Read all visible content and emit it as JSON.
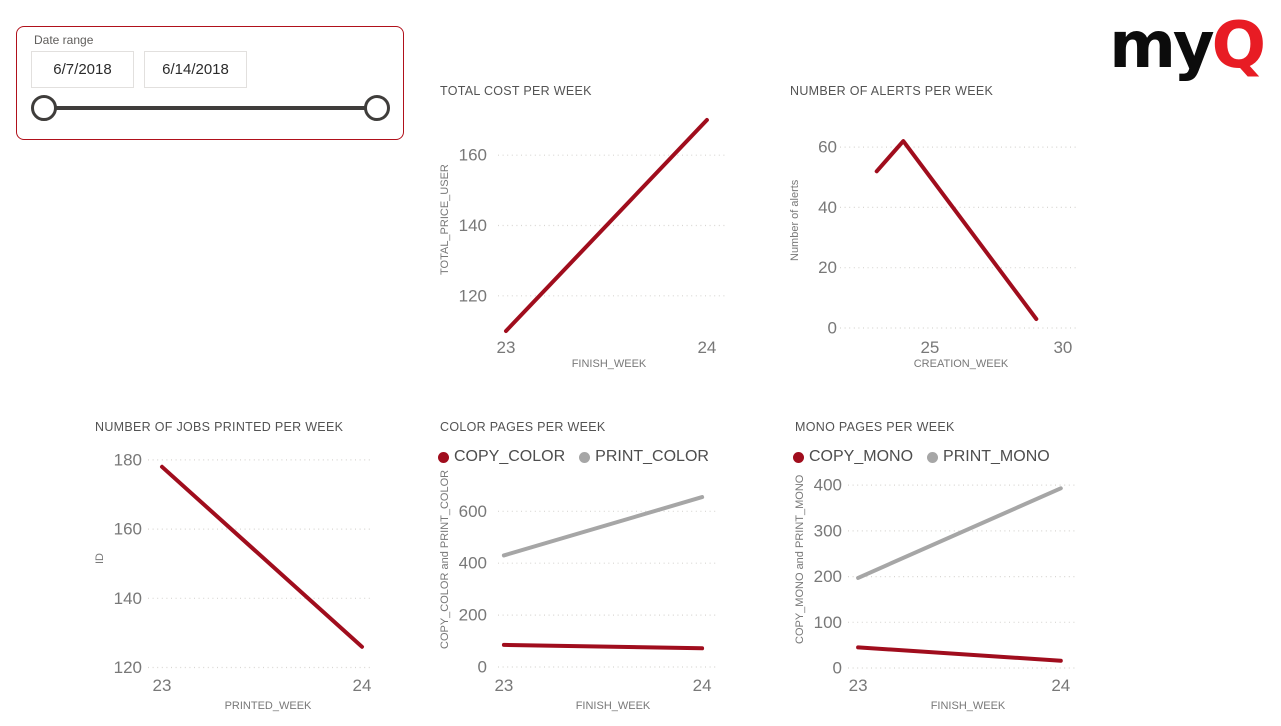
{
  "logo": {
    "text_black": "my",
    "text_red": "Q",
    "red": "#E81C24"
  },
  "slicer": {
    "label": "Date range",
    "start_date": "6/7/2018",
    "end_date": "6/14/2018"
  },
  "colors": {
    "red": "#A00D1D",
    "gray": "#A6A6A6",
    "grid": "#D8D6D2",
    "tick_text": "#787878",
    "slicer_border": "#B0111B"
  },
  "chart_data": [
    {
      "type": "line",
      "title": "TOTAL COST PER WEEK",
      "xlabel": "FINISH_WEEK",
      "ylabel": "TOTAL_PRICE_USER",
      "x_ticks": [
        23,
        24
      ],
      "y_ticks": [
        120,
        140,
        160
      ],
      "xlim": [
        22.96,
        24.09
      ],
      "ylim": [
        108,
        172
      ],
      "grid": true,
      "legend": null,
      "series": [
        {
          "name": "TOTAL_PRICE_USER",
          "color_key": "red",
          "points": [
            [
              23,
              110
            ],
            [
              24,
              170
            ]
          ]
        }
      ]
    },
    {
      "type": "line",
      "title": "NUMBER OF ALERTS PER WEEK",
      "xlabel": "CREATION_WEEK",
      "ylabel": "Number of alerts",
      "x_ticks": [
        25,
        30
      ],
      "y_ticks": [
        0,
        20,
        40,
        60
      ],
      "xlim": [
        21.62,
        30.53
      ],
      "ylim": [
        0,
        70
      ],
      "grid": true,
      "legend": null,
      "series": [
        {
          "name": "Number of alerts",
          "color_key": "red",
          "points": [
            [
              23,
              52
            ],
            [
              24,
              62
            ],
            [
              29,
              3
            ]
          ]
        }
      ]
    },
    {
      "type": "line",
      "title": "NUMBER OF JOBS PRINTED PER WEEK",
      "xlabel": "PRINTED_WEEK",
      "ylabel": "ID",
      "x_ticks": [
        23,
        24
      ],
      "y_ticks": [
        120,
        140,
        160,
        180
      ],
      "xlim": [
        22.93,
        24.04
      ],
      "ylim": [
        119,
        182
      ],
      "grid": true,
      "legend": null,
      "series": [
        {
          "name": "ID",
          "color_key": "red",
          "points": [
            [
              23,
              178
            ],
            [
              24,
              126
            ]
          ]
        }
      ]
    },
    {
      "type": "line",
      "title": "COLOR PAGES PER WEEK",
      "xlabel": "FINISH_WEEK",
      "ylabel": "COPY_COLOR and PRINT_COLOR",
      "x_ticks": [
        23,
        24
      ],
      "y_ticks": [
        0,
        200,
        400,
        600
      ],
      "xlim": [
        22.97,
        24.08
      ],
      "ylim": [
        0,
        690
      ],
      "grid": true,
      "legend": [
        {
          "label": "COPY_COLOR",
          "color_key": "red"
        },
        {
          "label": "PRINT_COLOR",
          "color_key": "gray"
        }
      ],
      "series": [
        {
          "name": "COPY_COLOR",
          "color_key": "red",
          "points": [
            [
              23,
              85
            ],
            [
              24,
              72
            ]
          ]
        },
        {
          "name": "PRINT_COLOR",
          "color_key": "gray",
          "points": [
            [
              23,
              430
            ],
            [
              24,
              655
            ]
          ]
        }
      ]
    },
    {
      "type": "line",
      "title": "MONO PAGES PER WEEK",
      "xlabel": "FINISH_WEEK",
      "ylabel": "COPY_MONO and PRINT_MONO",
      "x_ticks": [
        23,
        24
      ],
      "y_ticks": [
        0,
        100,
        200,
        300,
        400
      ],
      "xlim": [
        22.95,
        24.07
      ],
      "ylim": [
        0,
        420
      ],
      "grid": true,
      "legend": [
        {
          "label": "COPY_MONO",
          "color_key": "red"
        },
        {
          "label": "PRINT_MONO",
          "color_key": "gray"
        }
      ],
      "series": [
        {
          "name": "COPY_MONO",
          "color_key": "red",
          "points": [
            [
              23,
              45
            ],
            [
              24,
              16
            ]
          ]
        },
        {
          "name": "PRINT_MONO",
          "color_key": "gray",
          "points": [
            [
              23,
              197
            ],
            [
              24,
              393
            ]
          ]
        }
      ]
    }
  ]
}
